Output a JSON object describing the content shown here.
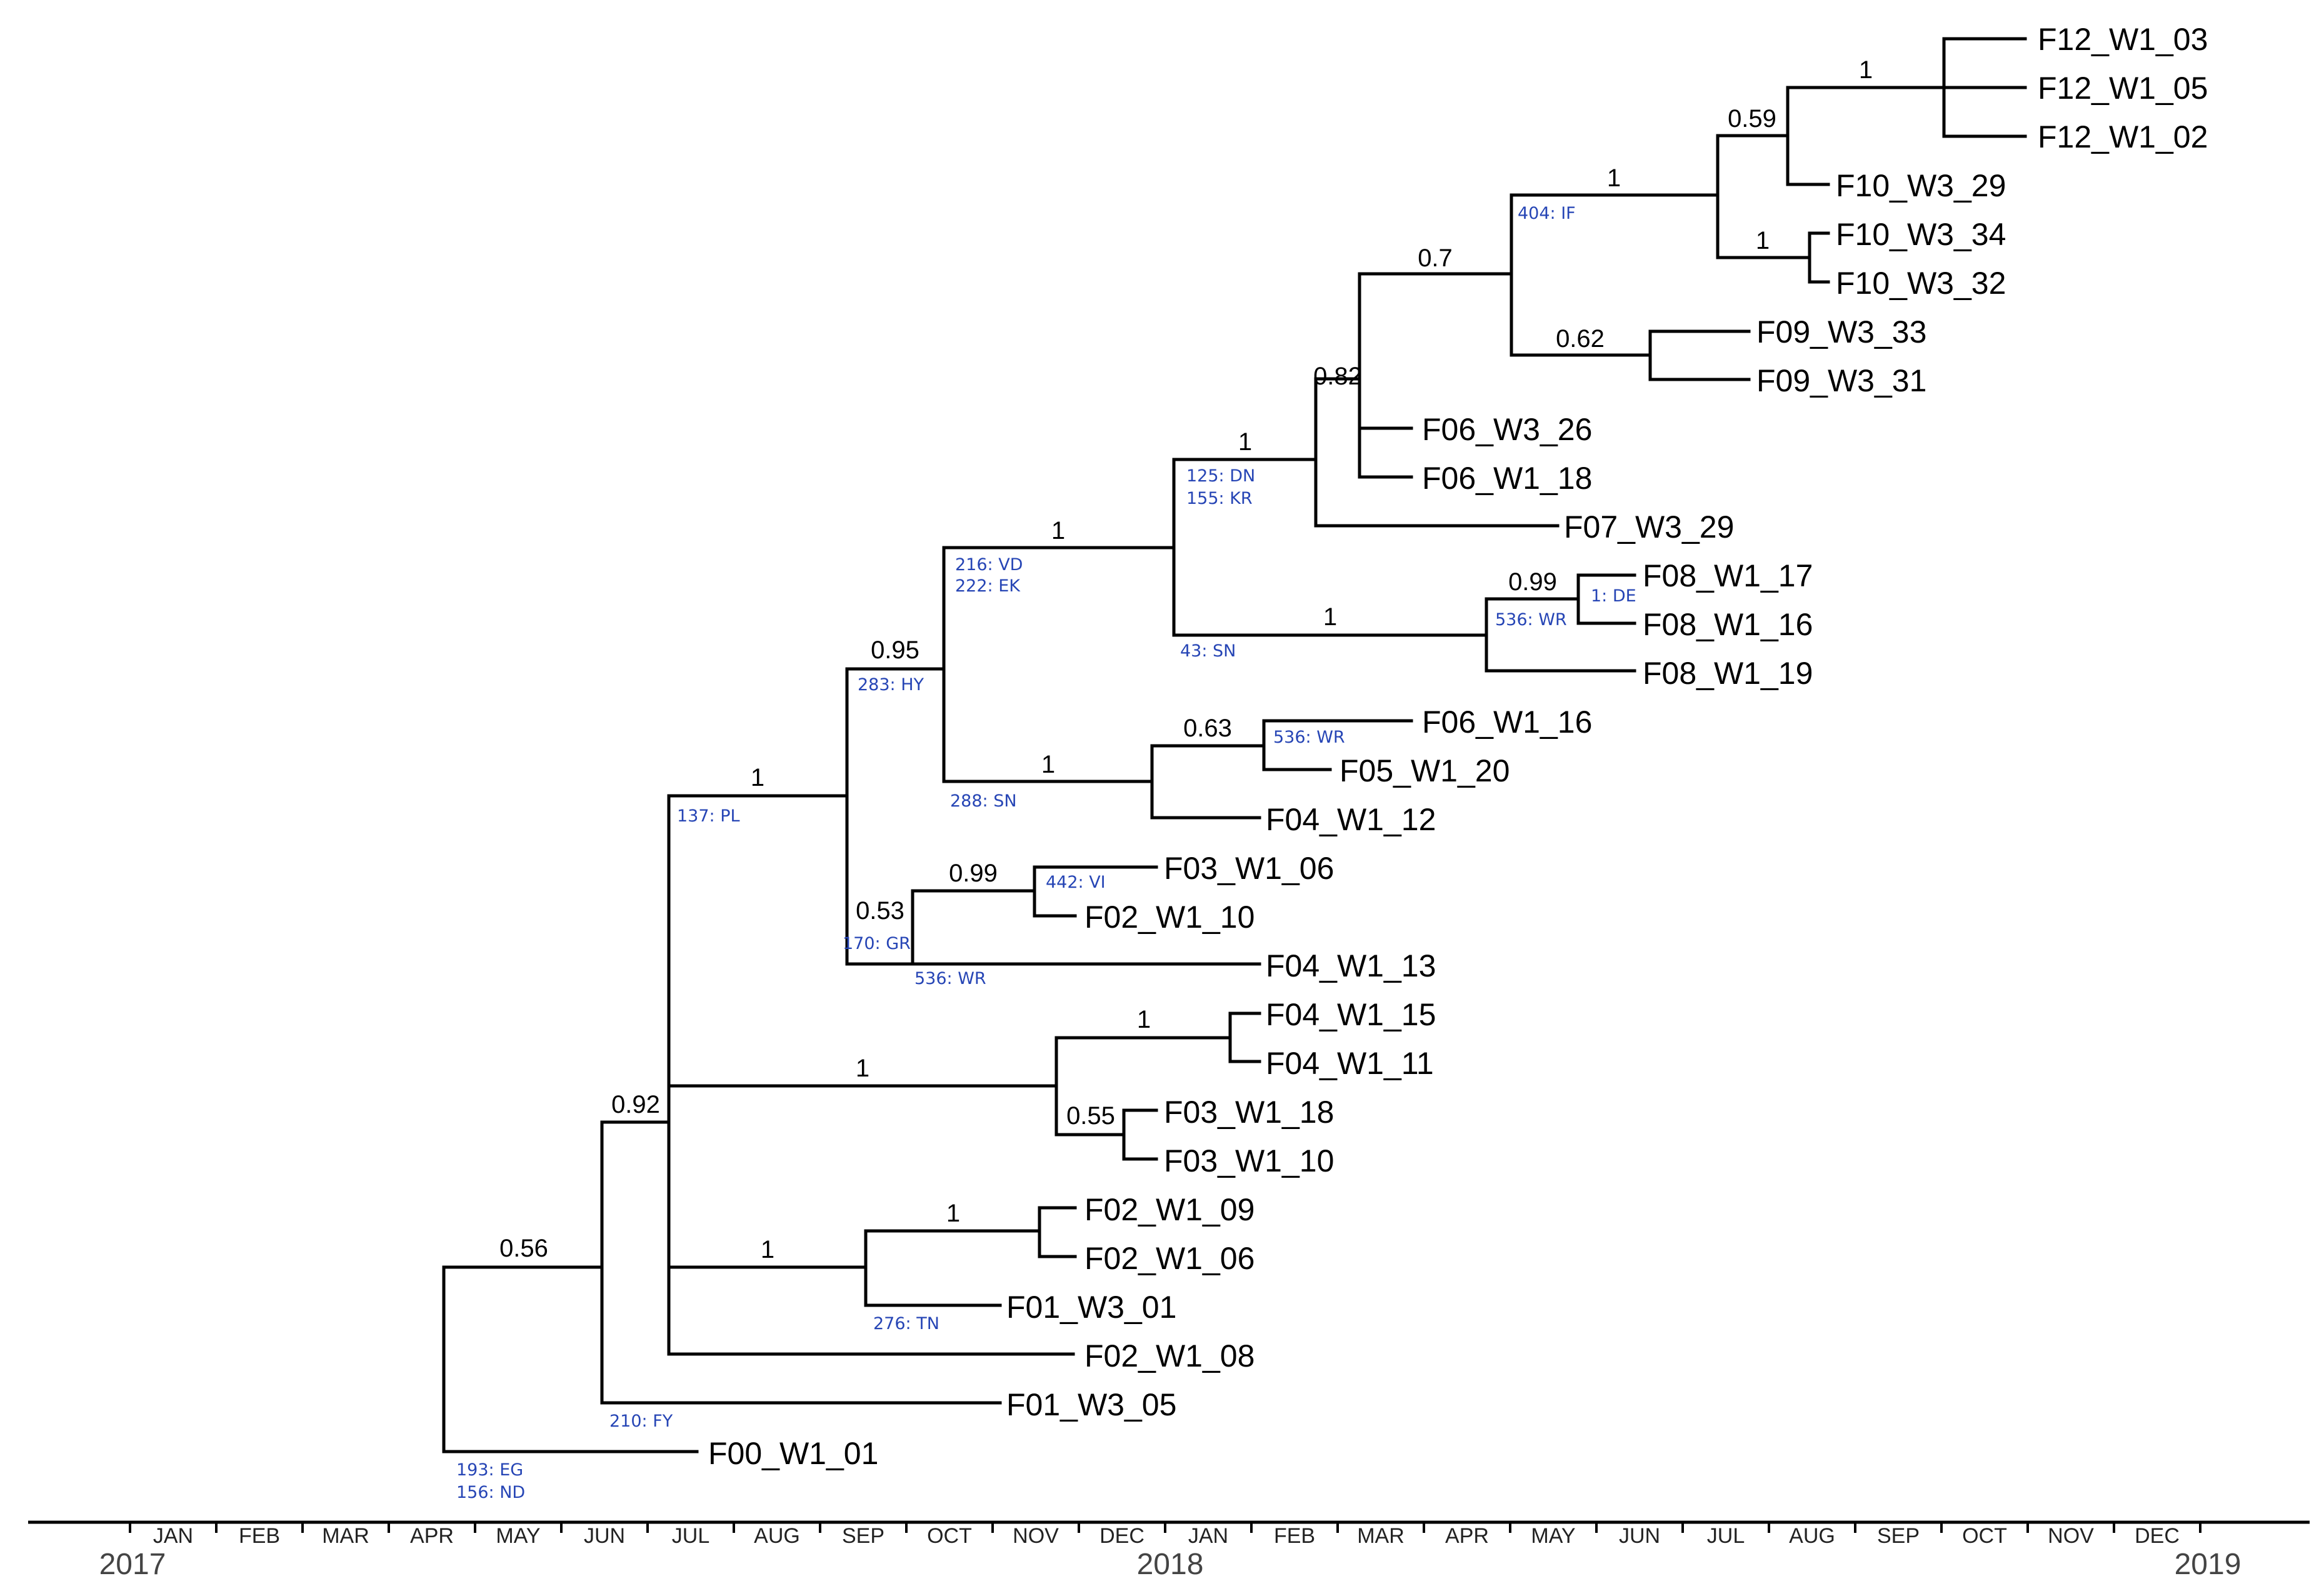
{
  "tips": [
    "F12_W1_03",
    "F12_W1_05",
    "F12_W1_02",
    "F10_W3_29",
    "F10_W3_34",
    "F10_W3_32",
    "F09_W3_33",
    "F09_W3_31",
    "F06_W3_26",
    "F06_W1_18",
    "F07_W3_29",
    "F08_W1_17",
    "F08_W1_16",
    "F08_W1_19",
    "F06_W1_16",
    "F05_W1_20",
    "F04_W1_12",
    "F03_W1_06",
    "F02_W1_10",
    "F04_W1_13",
    "F04_W1_15",
    "F04_W1_11",
    "F03_W1_18",
    "F03_W1_10",
    "F02_W1_09",
    "F02_W1_06",
    "F01_W3_01",
    "F02_W1_08",
    "F01_W3_05",
    "F00_W1_01"
  ],
  "supports": [
    "1",
    "0.59",
    "1",
    "1",
    "0.7",
    "0.62",
    "0.82",
    "1",
    "1",
    "0.99",
    "1",
    "0.95",
    "0.63",
    "1",
    "1",
    "0.99",
    "0.53",
    "1",
    "1",
    "0.55",
    "0.92",
    "1",
    "1",
    "0.56"
  ],
  "mutations": [
    "404: IF",
    "125: DN",
    "155: KR",
    "216: VD",
    "222: EK",
    "536: WR",
    "1: DE",
    "43: SN",
    "283: HY",
    "536: WR",
    "288: SN",
    "137: PL",
    "442: VI",
    "170: GR",
    "536: WR",
    "276: TN",
    "210: FY",
    "193: EG",
    "156: ND"
  ],
  "axis": {
    "months": [
      "JAN",
      "FEB",
      "MAR",
      "APR",
      "MAY",
      "JUN",
      "JUL",
      "AUG",
      "SEP",
      "OCT",
      "NOV",
      "DEC",
      "JAN",
      "FEB",
      "MAR",
      "APR",
      "MAY",
      "JUN",
      "JUL",
      "AUG",
      "SEP",
      "OCT",
      "NOV",
      "DEC"
    ],
    "years": [
      "2017",
      "2018",
      "2019"
    ]
  },
  "colors": {
    "branch": "#000000",
    "mutation_label": "#2645b5"
  }
}
